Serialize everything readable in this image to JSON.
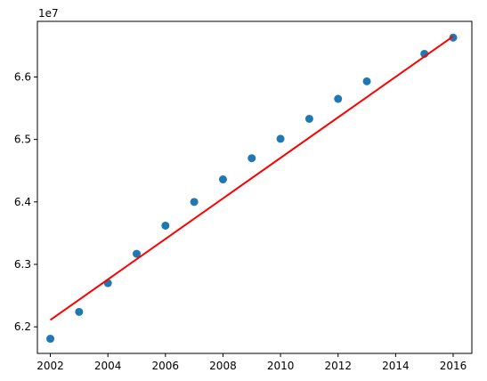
{
  "chart_data": {
    "type": "scatter",
    "title": "",
    "xlabel": "",
    "ylabel": "",
    "y_offset_label": "1e7",
    "xlim": [
      2001.55,
      2016.65
    ],
    "ylim": [
      61575000,
      66890000
    ],
    "x_ticks": [
      2002,
      2004,
      2006,
      2008,
      2010,
      2012,
      2014,
      2016
    ],
    "x_tick_labels": [
      "2002",
      "2004",
      "2006",
      "2008",
      "2010",
      "2012",
      "2014",
      "2016"
    ],
    "y_ticks": [
      62000000,
      63000000,
      64000000,
      65000000,
      66000000
    ],
    "y_tick_labels": [
      "6.2",
      "6.3",
      "6.4",
      "6.5",
      "6.6"
    ],
    "grid": false,
    "series": [
      {
        "kind": "scatter",
        "color": "#1f77b4",
        "x": [
          2002,
          2003,
          2004,
          2005,
          2006,
          2007,
          2008,
          2009,
          2010,
          2011,
          2012,
          2013,
          2015,
          2016
        ],
        "y": [
          61810000,
          62240000,
          62700000,
          63170000,
          63620000,
          64000000,
          64360000,
          64700000,
          65010000,
          65330000,
          65650000,
          65930000,
          66370000,
          66630000
        ]
      },
      {
        "kind": "line",
        "color": "#ff0000",
        "x": [
          2002,
          2016
        ],
        "y": [
          62110000,
          66650000
        ]
      }
    ]
  }
}
